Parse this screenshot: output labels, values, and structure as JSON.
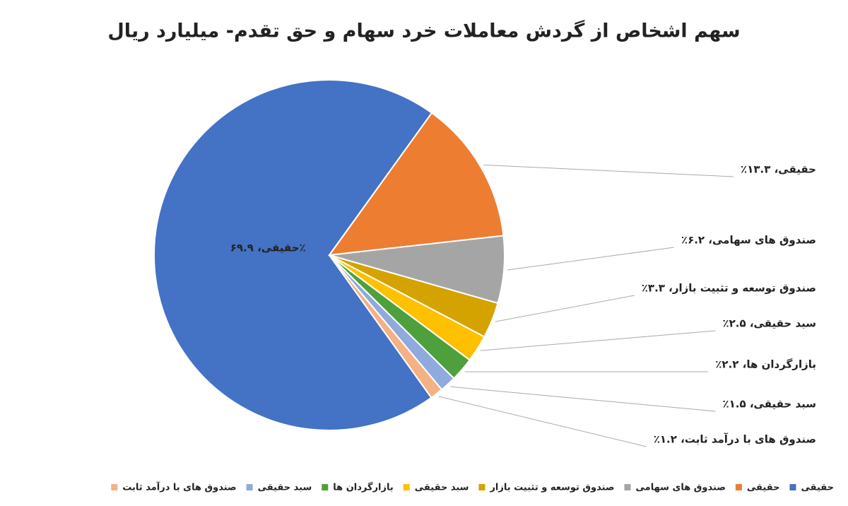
{
  "chart_data": {
    "type": "pie",
    "title": "سهم اشخاص از گردش معاملات خرد سهام و حق تقدم- میلیارد ریال",
    "categories": [
      "حقیقی",
      "حقیقی",
      "صندوق های سهامی",
      "صندوق توسعه و تثبیت بازار",
      "سبد حقیقی",
      "بازارگردان ها",
      "سبد حقیقی",
      "صندوق های با درآمد ثابت"
    ],
    "values": [
      69.9,
      13.3,
      6.2,
      3.3,
      2.5,
      2.2,
      1.5,
      1.2
    ],
    "value_labels": [
      "حقیقی، ۶۹.۹٪",
      "حقیقی، ۱۳.۳٪",
      "صندوق های سهامی، ۶.۲٪",
      "صندوق توسعه و تثبیت بازار، ۳.۳٪",
      "سبد حقیقی، ۲.۵٪",
      "بازارگردان ها، ۲.۲٪",
      "سبد حقیقی، ۱.۵٪",
      "صندوق های با درآمد ثابت، ۱.۲٪"
    ],
    "colors": [
      "#4472c4",
      "#ed7d31",
      "#a5a5a5",
      "#d4a300",
      "#ffc000",
      "#4ea03c",
      "#8faadc",
      "#f4b183"
    ],
    "legend": "bottom"
  }
}
